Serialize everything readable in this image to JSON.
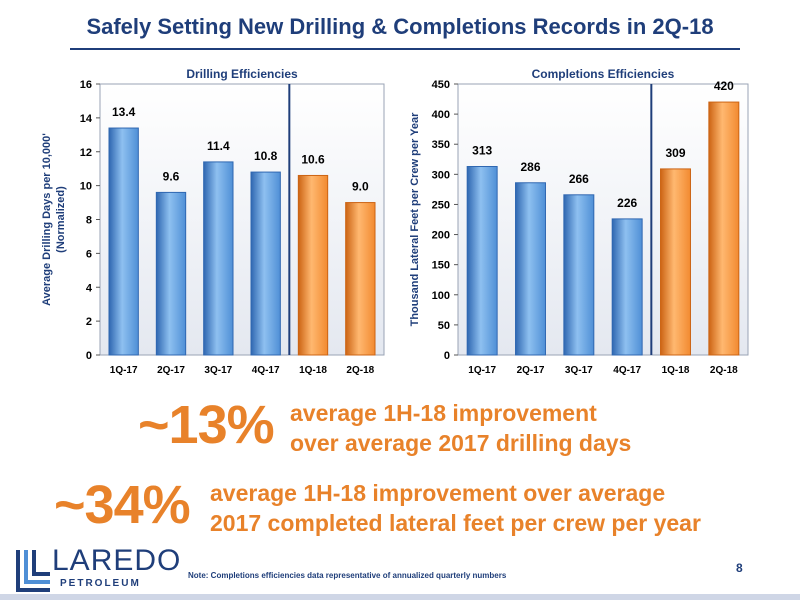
{
  "title": "Safely Setting New Drilling & Completions Records in 2Q-18",
  "colors": {
    "navy": "#1f3e7a",
    "blue_bar": "#4f8fd6",
    "blue_bar_dark": "#2f67b1",
    "orange_bar": "#f28a30",
    "orange_bar_dark": "#cc6414",
    "accent_orange": "#e8822a"
  },
  "chart_data": [
    {
      "type": "bar",
      "title": "Drilling Efficiencies",
      "categories": [
        "1Q-17",
        "2Q-17",
        "3Q-17",
        "4Q-17",
        "1Q-18",
        "2Q-18"
      ],
      "values": [
        13.4,
        9.6,
        11.4,
        10.8,
        10.6,
        9.0
      ],
      "value_labels": [
        "13.4",
        "9.6",
        "11.4",
        "10.8",
        "10.6",
        "9.0"
      ],
      "highlight_categories": [
        "1Q-18",
        "2Q-18"
      ],
      "ylabel": "Average Drilling Days per 10,000'",
      "ylabel_sub": "(Normalized)",
      "ylim": [
        0,
        16
      ],
      "yticks": [
        0,
        2,
        4,
        6,
        8,
        10,
        12,
        14,
        16
      ],
      "grid": false,
      "legend": "none"
    },
    {
      "type": "bar",
      "title": "Completions Efficiencies",
      "categories": [
        "1Q-17",
        "2Q-17",
        "3Q-17",
        "4Q-17",
        "1Q-18",
        "2Q-18"
      ],
      "values": [
        313,
        286,
        266,
        226,
        309,
        420
      ],
      "value_labels": [
        "313",
        "286",
        "266",
        "226",
        "309",
        "420"
      ],
      "highlight_categories": [
        "1Q-18",
        "2Q-18"
      ],
      "ylabel": "Thousand Lateral Feet per Crew per Year",
      "ylim": [
        0,
        450
      ],
      "yticks": [
        0,
        50,
        100,
        150,
        200,
        250,
        300,
        350,
        400,
        450
      ],
      "grid": false,
      "legend": "none"
    }
  ],
  "stats": [
    {
      "percent": "~13%",
      "line1": "average 1H-18 improvement",
      "line2": "over average 2017 drilling days"
    },
    {
      "percent": "~34%",
      "line1": "average 1H-18 improvement over average",
      "line2": "2017 completed lateral feet per crew per year"
    }
  ],
  "footnote": "Note: Completions efficiencies data representative of annualized quarterly numbers",
  "page_number": "8",
  "logo": {
    "word": "LAREDO",
    "sub": "PETROLEUM"
  }
}
